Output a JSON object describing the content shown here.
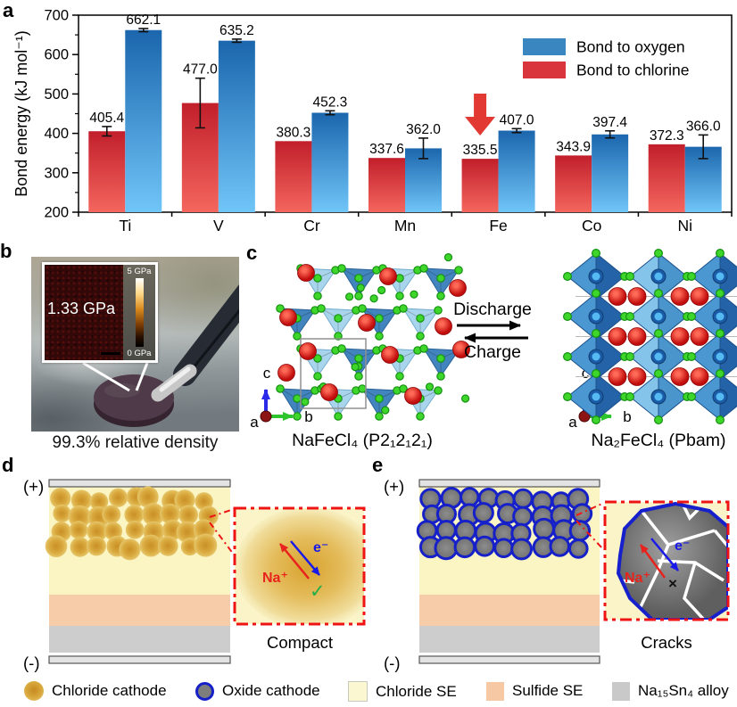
{
  "panel_labels": {
    "a": "a",
    "b": "b",
    "c": "c",
    "d": "d",
    "e": "e"
  },
  "chart_data": {
    "type": "bar",
    "title": "",
    "ylabel": "Bond energy (kJ mol⁻¹)",
    "xlabel": "",
    "ylim": [
      200,
      700
    ],
    "yticks": [
      200,
      300,
      400,
      500,
      600,
      700
    ],
    "grid": false,
    "legend_position": "top-right",
    "categories": [
      "Ti",
      "V",
      "Cr",
      "Mn",
      "Fe",
      "Co",
      "Ni"
    ],
    "series": [
      {
        "name": "Bond to chlorine",
        "color": "#d8353c",
        "values": [
          405.4,
          477.0,
          380.3,
          337.6,
          335.5,
          343.9,
          372.3
        ],
        "errors": [
          12,
          63,
          0,
          0,
          0,
          0,
          0
        ]
      },
      {
        "name": "Bond to oxygen",
        "color": "#3a86c0",
        "values": [
          662.1,
          635.2,
          452.3,
          362.0,
          407.0,
          397.4,
          366.0
        ],
        "errors": [
          4,
          4,
          5,
          26,
          5,
          9,
          30
        ]
      }
    ],
    "legend_order": [
      "Bond to oxygen",
      "Bond to chlorine"
    ],
    "annotation": {
      "type": "down-arrow",
      "target_category": "Fe",
      "target_series": "Bond to chlorine",
      "color": "#e23a33"
    }
  },
  "panel_b": {
    "inset_value": "1.33 GPa",
    "scale_max": "5 GPa",
    "scale_min": "0 GPa",
    "caption": "99.3% relative density"
  },
  "panel_c": {
    "left_formula": "NaFeCl₄ (P2₁2₁2₁)",
    "right_formula": "Na₂FeCl₄ (Pbam)",
    "forward_label": "Discharge",
    "backward_label": "Charge",
    "axis_labels": {
      "a": "a",
      "b": "b",
      "c": "c"
    }
  },
  "panel_d": {
    "positive": "(+)",
    "negative": "(-)",
    "ion_label": "Na⁺",
    "electron_label": "e⁻",
    "check_mark": "✓",
    "caption": "Compact"
  },
  "panel_e": {
    "positive": "(+)",
    "negative": "(-)",
    "ion_label": "Na⁺",
    "electron_label": "e⁻",
    "cross_mark": "×",
    "caption": "Cracks"
  },
  "bottom_legend": {
    "items": [
      {
        "label": "Chloride cathode",
        "swatch": "gold-circle"
      },
      {
        "label": "Oxide cathode",
        "swatch": "oxide-circle"
      },
      {
        "label": "Chloride SE",
        "swatch": "chloride-square",
        "color": "#fbf7d0"
      },
      {
        "label": "Sulfide SE",
        "swatch": "sulfide-square",
        "color": "#f6c9a4"
      },
      {
        "label": "Na₁₅Sn₄ alloy",
        "swatch": "alloy-square",
        "color": "#c9c9c9"
      }
    ]
  }
}
